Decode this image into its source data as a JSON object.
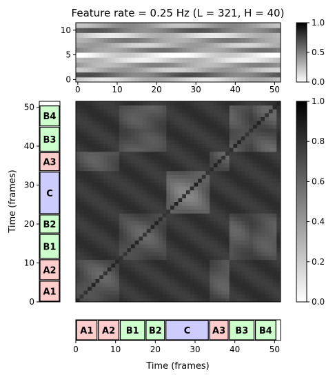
{
  "chart_data": [
    {
      "type": "heatmap",
      "panel": "feature",
      "title": "Feature rate = 0.25 Hz (L = 321, H = 40)",
      "xlim": [
        0,
        51
      ],
      "ylim": [
        0,
        11
      ],
      "x_ticks": [
        "0",
        "10",
        "20",
        "30",
        "40",
        "50"
      ],
      "y_ticks": [
        "0",
        "5",
        "10"
      ],
      "colormap": "gray_r",
      "colorbar": {
        "range": [
          0,
          1
        ],
        "ticks": [
          "0.0",
          "0.5",
          "1.0"
        ]
      },
      "row_levels": [
        0.22,
        0.58,
        0.3,
        0.38,
        0.18,
        0.1,
        0.45,
        0.28,
        0.42,
        0.2,
        0.55,
        0.35
      ]
    },
    {
      "type": "heatmap",
      "panel": "self-similarity",
      "title": "",
      "xlim": [
        0,
        51
      ],
      "ylim": [
        0,
        51
      ],
      "ylabel": "Time (frames)",
      "y_ticks": [
        "0",
        "10",
        "20",
        "30",
        "40",
        "50"
      ],
      "colormap": "gray_r",
      "colorbar": {
        "range": [
          0,
          1
        ],
        "ticks": [
          "0.0",
          "0.2",
          "0.4",
          "0.6",
          "0.8",
          "1.0"
        ]
      }
    },
    {
      "type": "segments",
      "panel": "structure",
      "xlabel": "Time (frames)",
      "xlim": [
        0,
        51
      ],
      "x_ticks": [
        "0",
        "10",
        "20",
        "30",
        "40",
        "50"
      ],
      "segments": [
        {
          "label": "A1",
          "start": 0,
          "end": 5.5,
          "color": "#ffcccc"
        },
        {
          "label": "A2",
          "start": 5.5,
          "end": 11,
          "color": "#ffcccc"
        },
        {
          "label": "B1",
          "start": 11,
          "end": 17.5,
          "color": "#ccffcc"
        },
        {
          "label": "B2",
          "start": 17.5,
          "end": 22.5,
          "color": "#ccffcc"
        },
        {
          "label": "C",
          "start": 22.5,
          "end": 33.5,
          "color": "#ccccff"
        },
        {
          "label": "A3",
          "start": 33.5,
          "end": 38.5,
          "color": "#ffcccc"
        },
        {
          "label": "B3",
          "start": 38.5,
          "end": 45,
          "color": "#ccffcc"
        },
        {
          "label": "B4",
          "start": 45,
          "end": 50.5,
          "color": "#ccffcc"
        }
      ]
    }
  ]
}
